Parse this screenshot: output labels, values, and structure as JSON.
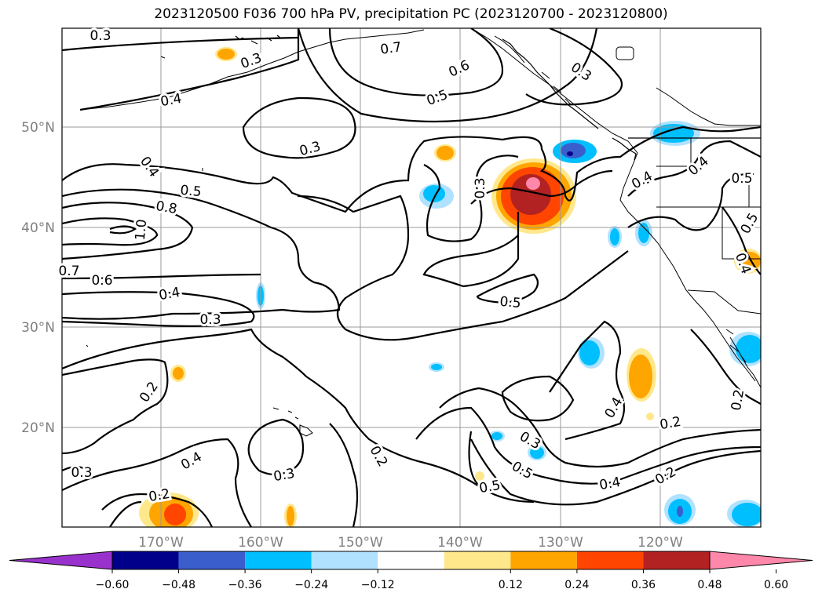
{
  "title": "2023120500 F036 700 hPa PV, precipitation PC (2023120700 - 2023120800)",
  "map": {
    "lat_labels": [
      "50°N",
      "40°N",
      "30°N",
      "20°N"
    ],
    "lon_labels": [
      "170°W",
      "160°W",
      "150°W",
      "140°W",
      "130°W",
      "120°W"
    ],
    "contour_labels": [
      "0.3",
      "0.3",
      "0.4",
      "0.7",
      "0.6",
      "0.5",
      "0.3",
      "0.3",
      "0.4",
      "0.5",
      "0.8",
      "1.0",
      "0.7",
      "0.6",
      "0.4",
      "0.3",
      "0.3",
      "0.5",
      "0.4",
      "0.4",
      "0.5",
      "0.5",
      "0.2",
      "0.4",
      "0.3",
      "0.2",
      "0.2",
      "0.3",
      "0.2",
      "0.2",
      "0.4",
      "0.5",
      "0.4",
      "0.3",
      "0.2",
      "0.5",
      "0.4"
    ]
  },
  "colorbar": {
    "tick_labels": [
      "−0.60",
      "−0.48",
      "−0.36",
      "−0.24",
      "−0.12",
      "0.12",
      "0.24",
      "0.36",
      "0.48",
      "0.60"
    ],
    "colors": [
      "#9932cc",
      "#00008b",
      "#3a5fcd",
      "#00bfff",
      "#b0e2ff",
      "#ffffff",
      "#ffe88c",
      "#ffa500",
      "#ff4500",
      "#b22222",
      "#ff88aa"
    ]
  }
}
